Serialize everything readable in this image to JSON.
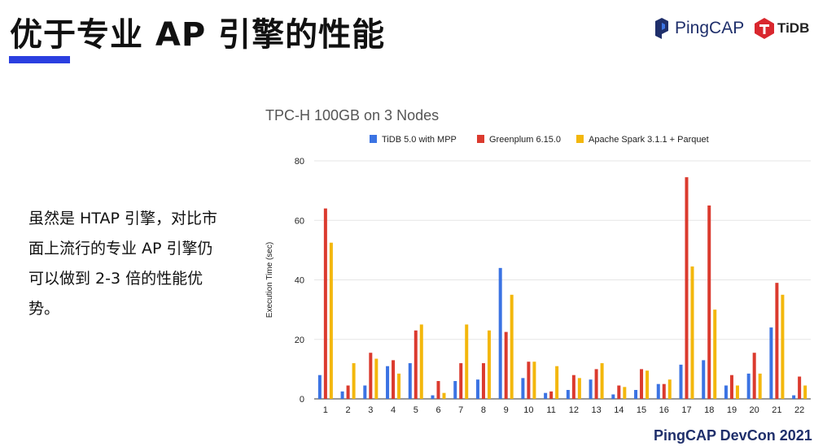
{
  "slide": {
    "title": "优于专业 AP 引擎的性能",
    "description": "虽然是 HTAP 引擎，对比市面上流行的专业 AP 引擎仍可以做到 2-3 倍的性能优势。",
    "footer": "PingCAP DevCon 2021"
  },
  "logos": {
    "pingcap": "PingCAP",
    "tidb": "TiDB"
  },
  "colors": {
    "accent": "#2b3fe0",
    "tidb": "#3b73e3",
    "greenplum": "#db3a2e",
    "spark": "#f3b70c",
    "grid": "#e6e6e6",
    "axis_text": "#222222"
  },
  "chart_data": {
    "type": "bar",
    "title": "TPC-H 100GB on 3 Nodes",
    "xlabel": "",
    "ylabel": "Execution Time (sec)",
    "ylim": [
      0,
      80
    ],
    "yticks": [
      0,
      20,
      40,
      60,
      80
    ],
    "grid": true,
    "legend_position": "top",
    "categories": [
      "1",
      "2",
      "3",
      "4",
      "5",
      "6",
      "7",
      "8",
      "9",
      "10",
      "11",
      "12",
      "13",
      "14",
      "15",
      "16",
      "17",
      "18",
      "19",
      "20",
      "21",
      "22"
    ],
    "series": [
      {
        "name": "TiDB 5.0 with MPP",
        "values": [
          8,
          2.5,
          4.5,
          11,
          12,
          1.2,
          6,
          6.5,
          44,
          7,
          2,
          3,
          6.5,
          1.5,
          3,
          5,
          11.5,
          13,
          4.5,
          8.5,
          24,
          1.2
        ]
      },
      {
        "name": "Greenplum 6.15.0",
        "values": [
          64,
          4.5,
          15.5,
          13,
          23,
          6,
          12,
          12,
          22.5,
          12.5,
          2.5,
          8,
          10,
          4.5,
          10,
          5,
          74.5,
          65,
          8,
          15.5,
          39,
          7.5
        ]
      },
      {
        "name": "Apache Spark 3.1.1 + Parquet",
        "values": [
          52.5,
          12,
          13.5,
          8.5,
          25,
          2,
          25,
          23,
          35,
          12.5,
          11,
          7,
          12,
          4,
          9.5,
          6.5,
          44.5,
          30,
          4.5,
          8.5,
          35,
          4.5
        ]
      }
    ]
  }
}
